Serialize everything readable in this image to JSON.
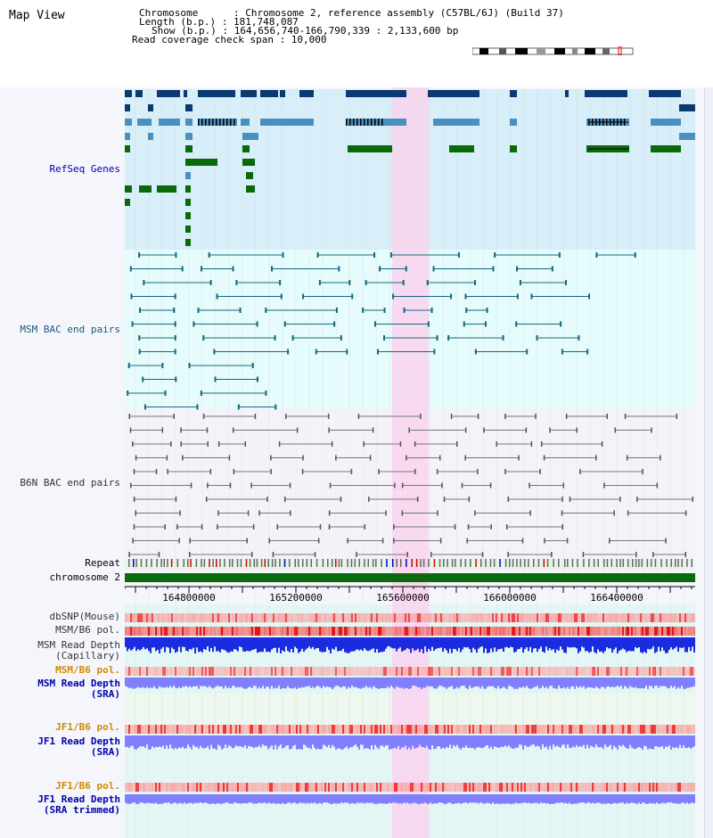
{
  "app": {
    "view_title": "Map View"
  },
  "info": {
    "chromosome_line": "Chromosome      : Chromosome 2, reference assembly (C57BL/6J) (Build 37)",
    "length_line": "Length (b.p.) : 181,748,087",
    "show_line": "Show (b.p.) : 164,656,740-166,790,339 : 2,133,600 bp",
    "coverage_line": "Read coverage check span : 10,000"
  },
  "tracks": {
    "refseq": "RefSeq Genes",
    "msm_bac": "MSM BAC end pairs",
    "b6n_bac": "B6N BAC end pairs",
    "repeat": "Repeat",
    "chromosome": "chromosome 2",
    "dbsnp": "dbSNP(Mouse)",
    "msm_b6_pol_1": "MSM/B6 pol.",
    "msm_read_depth_cap_1": "MSM Read Depth",
    "msm_read_depth_cap_2": "(Capillary)",
    "msm_b6_pol_2": "MSM/B6 pol.",
    "msm_read_depth_sra_1": "MSM Read Depth",
    "msm_read_depth_sra_2": "(SRA)",
    "jf1_b6_pol_1": "JF1/B6 pol.",
    "jf1_read_depth_1": "JF1 Read Depth",
    "jf1_read_depth_2": "(SRA)",
    "jf1_b6_pol_2": "JF1/B6 pol.",
    "jf1_read_depth_trim_1": "JF1 Read Depth",
    "jf1_read_depth_trim_2": "(SRA trimmed)"
  },
  "axis": {
    "ticks": [
      "164800000",
      "165200000",
      "165600000",
      "166000000",
      "166400000"
    ]
  },
  "colors": {
    "refseq_bg": "#d8eef8",
    "msm_bg": "#e6fbfb",
    "b6n_bg": "#f4f4f8",
    "highlight": "#f9d4ef",
    "navy": "#0b3a70",
    "steel": "#4b8fbf",
    "green": "#0a6a0a",
    "teal_line": "#15697f",
    "gray_line": "#777777",
    "chrom_bar": "#0b6a0b",
    "depth_blue": "#1a2be0",
    "depth_violet": "#8080ff",
    "pol_red": "#f08080"
  }
}
